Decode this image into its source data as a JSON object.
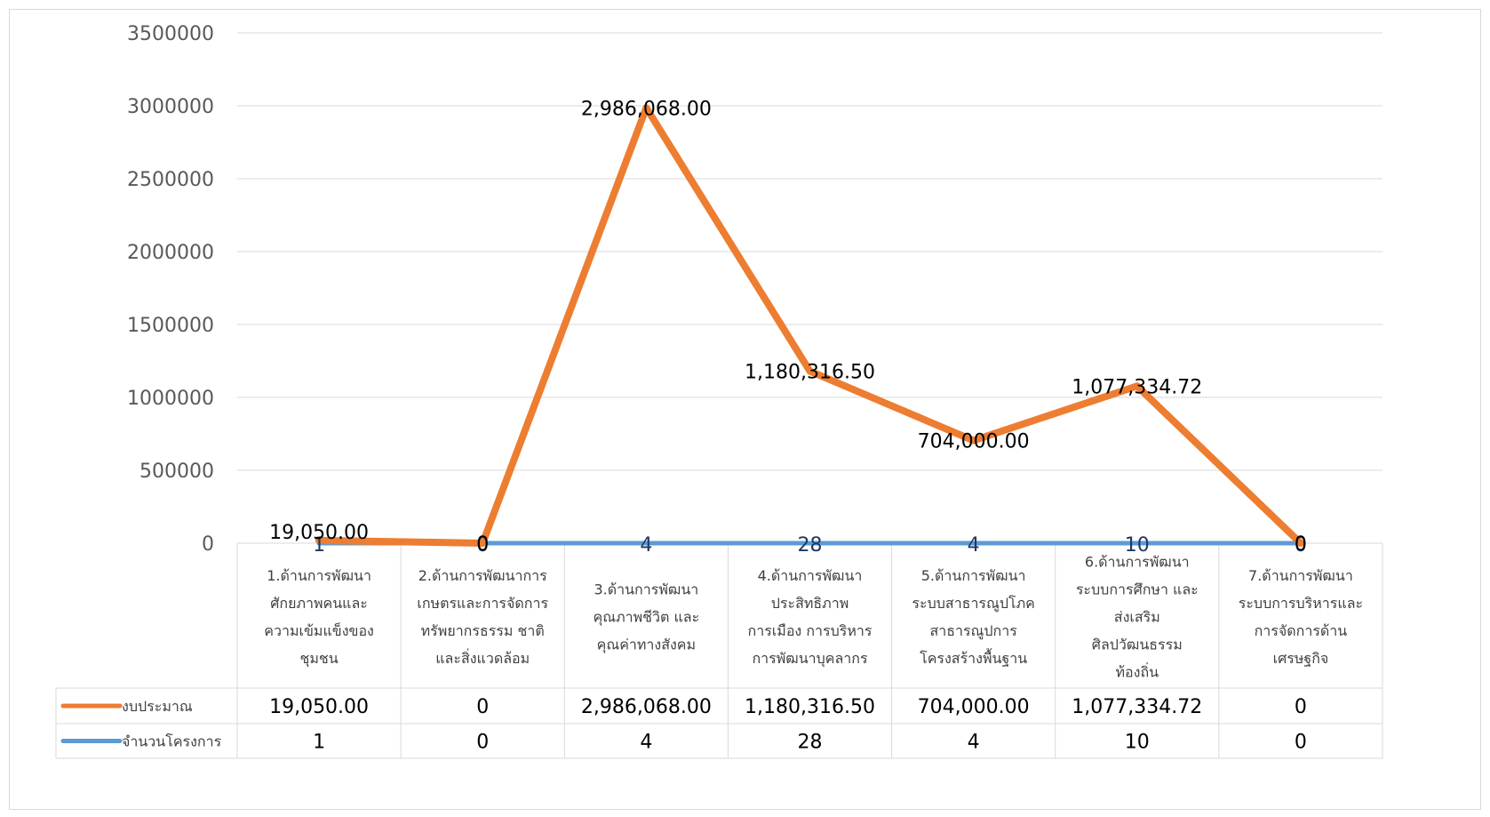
{
  "chart_data": {
    "type": "line",
    "categories": [
      [
        "1.ด้านการพัฒนา",
        "ศักยภาพคนและ",
        "ความเข้มแข็งของ",
        "ชุมชน"
      ],
      [
        "2.ด้านการพัฒนาการ",
        "เกษตรและการจัดการ",
        "ทรัพยากรธรรม ชาติ",
        "และสิ่งแวดล้อม"
      ],
      [
        "3.ด้านการพัฒนา",
        "คุณภาพชีวิต และ",
        "คุณค่าทางสังคม"
      ],
      [
        "4.ด้านการพัฒนา",
        "ประสิทธิภาพ",
        "การเมือง การบริหาร",
        "การพัฒนาบุคลากร"
      ],
      [
        "5.ด้านการพัฒนา",
        "ระบบสาธารณูปโภค",
        "สาธารณูปการ",
        "โครงสร้างพื้นฐาน"
      ],
      [
        "6.ด้านการพัฒนา",
        "ระบบการศึกษา และ",
        "ส่งเสริม",
        "ศิลปวัฒนธรรม",
        "ท้องถิ่น"
      ],
      [
        "7.ด้านการพัฒนา",
        "ระบบการบริหารและ",
        "การจัดการด้าน",
        "เศรษฐกิจ"
      ]
    ],
    "series": [
      {
        "name": "งบประมาณ",
        "color": "#ed7d31",
        "values": [
          19050,
          0,
          2986068,
          1180316.5,
          704000,
          1077334.72,
          0
        ],
        "labels": [
          "19,050.00",
          "0",
          "2,986,068.00",
          "1,180,316.50",
          "704,000.00",
          "1,077,334.72",
          "0"
        ]
      },
      {
        "name": "จำนวนโครงการ",
        "color": "#5b9bd5",
        "values": [
          1,
          0,
          4,
          28,
          4,
          10,
          0
        ],
        "labels": [
          "1",
          "0",
          "4",
          "28",
          "4",
          "10",
          "0"
        ]
      }
    ],
    "ylim": [
      0,
      3500000
    ],
    "yticks": [
      "0",
      "500000",
      "1000000",
      "1500000",
      "2000000",
      "2500000",
      "3000000",
      "3500000"
    ],
    "grid": true,
    "legend": "data-table"
  }
}
